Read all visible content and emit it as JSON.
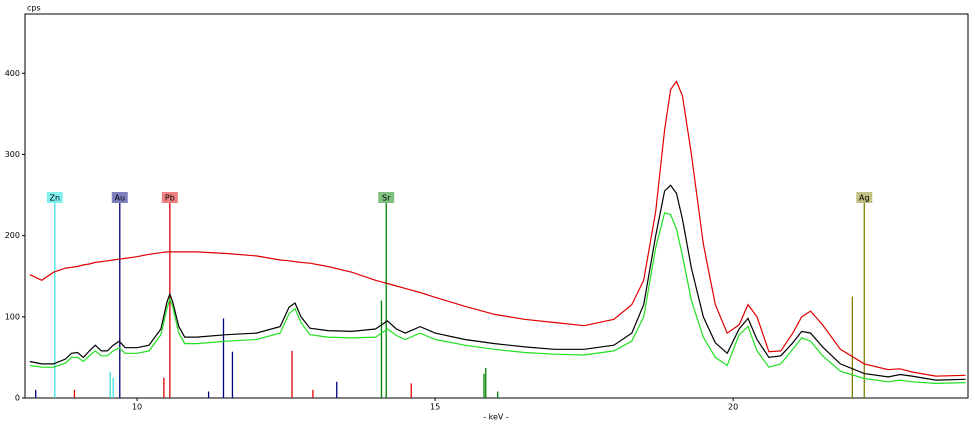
{
  "chart_data": {
    "type": "line",
    "ylabel": "cps",
    "xlabel": "- keV -",
    "xlim": [
      8.12,
      23.94
    ],
    "ylim": [
      0,
      473
    ],
    "xticks": [
      10,
      15,
      20
    ],
    "yticks": [
      0,
      100,
      200,
      300,
      400
    ],
    "x": [
      8.2,
      8.4,
      8.6,
      8.8,
      8.9,
      9.0,
      9.1,
      9.2,
      9.3,
      9.4,
      9.5,
      9.6,
      9.7,
      9.8,
      10.0,
      10.2,
      10.4,
      10.5,
      10.55,
      10.6,
      10.7,
      10.8,
      11.0,
      11.5,
      12.0,
      12.4,
      12.55,
      12.65,
      12.75,
      12.9,
      13.2,
      13.6,
      14.0,
      14.1,
      14.2,
      14.35,
      14.5,
      14.75,
      15.0,
      15.5,
      16.0,
      16.5,
      17.0,
      17.5,
      18.0,
      18.3,
      18.5,
      18.7,
      18.85,
      18.95,
      19.05,
      19.15,
      19.3,
      19.5,
      19.7,
      19.9,
      20.1,
      20.25,
      20.4,
      20.6,
      20.8,
      21.0,
      21.15,
      21.3,
      21.5,
      21.8,
      22.2,
      22.6,
      22.8,
      23.0,
      23.4,
      23.9
    ],
    "series": [
      {
        "color": "#e00000",
        "values": [
          152,
          145,
          155,
          160,
          161,
          162,
          164,
          165,
          167,
          168,
          169,
          170,
          171,
          172,
          174,
          177,
          179,
          180,
          180,
          180,
          180,
          180,
          180,
          178,
          175,
          170,
          169,
          168,
          167,
          166,
          162,
          155,
          145,
          143,
          141,
          138,
          135,
          130,
          124,
          113,
          103,
          97,
          93,
          89,
          97,
          115,
          145,
          230,
          330,
          380,
          390,
          372,
          300,
          190,
          115,
          80,
          90,
          115,
          100,
          57,
          58,
          80,
          100,
          107,
          90,
          60,
          42,
          35,
          36,
          32,
          27,
          28
        ]
      },
      {
        "color": "#000000",
        "values": [
          45,
          42,
          42,
          48,
          55,
          56,
          50,
          58,
          65,
          58,
          58,
          65,
          70,
          62,
          62,
          65,
          85,
          118,
          128,
          118,
          88,
          75,
          75,
          78,
          80,
          88,
          112,
          117,
          100,
          86,
          83,
          82,
          85,
          90,
          95,
          85,
          80,
          88,
          80,
          72,
          67,
          63,
          60,
          60,
          65,
          80,
          115,
          200,
          255,
          262,
          252,
          220,
          160,
          100,
          68,
          55,
          85,
          98,
          72,
          50,
          52,
          68,
          82,
          80,
          63,
          42,
          30,
          26,
          29,
          27,
          22,
          23
        ]
      },
      {
        "color": "#20e020",
        "values": [
          40,
          38,
          38,
          43,
          50,
          50,
          45,
          52,
          58,
          52,
          52,
          58,
          62,
          55,
          55,
          58,
          78,
          110,
          122,
          112,
          80,
          67,
          67,
          70,
          72,
          80,
          104,
          110,
          93,
          78,
          75,
          74,
          75,
          80,
          85,
          77,
          72,
          80,
          72,
          65,
          60,
          56,
          54,
          53,
          58,
          70,
          100,
          185,
          228,
          226,
          208,
          175,
          120,
          75,
          50,
          40,
          78,
          88,
          58,
          38,
          42,
          60,
          74,
          70,
          52,
          33,
          24,
          20,
          22,
          20,
          18,
          19
        ]
      }
    ],
    "markers": [
      {
        "label": "Zn",
        "x": 8.62,
        "color": "#40e0e0",
        "box": "#80f0f0"
      },
      {
        "label": "Au",
        "x": 9.71,
        "color": "#000080",
        "box": "#8080c0"
      },
      {
        "label": "Pb",
        "x": 10.55,
        "color": "#e00000",
        "box": "#f08080"
      },
      {
        "label": "Sr",
        "x": 14.18,
        "color": "#008000",
        "box": "#80c080"
      },
      {
        "label": "Ag",
        "x": 22.2,
        "color": "#808000",
        "box": "#c0c080"
      }
    ],
    "lines": [
      {
        "x": 8.3,
        "height": 10,
        "color": "#000080"
      },
      {
        "x": 8.95,
        "height": 10,
        "color": "#e00000"
      },
      {
        "x": 9.55,
        "height": 32,
        "color": "#40e0e0"
      },
      {
        "x": 9.6,
        "height": 25,
        "color": "#40e0e0"
      },
      {
        "x": 10.45,
        "height": 25,
        "color": "#e00000"
      },
      {
        "x": 11.2,
        "height": 8,
        "color": "#000080"
      },
      {
        "x": 11.45,
        "height": 98,
        "color": "#000080"
      },
      {
        "x": 11.6,
        "height": 57,
        "color": "#000080"
      },
      {
        "x": 12.6,
        "height": 58,
        "color": "#e00000"
      },
      {
        "x": 12.95,
        "height": 10,
        "color": "#e00000"
      },
      {
        "x": 13.35,
        "height": 20,
        "color": "#000080"
      },
      {
        "x": 14.1,
        "height": 120,
        "color": "#008000"
      },
      {
        "x": 14.6,
        "height": 18,
        "color": "#e00000"
      },
      {
        "x": 15.82,
        "height": 30,
        "color": "#008000"
      },
      {
        "x": 15.85,
        "height": 37,
        "color": "#008000"
      },
      {
        "x": 16.05,
        "height": 8,
        "color": "#008000"
      },
      {
        "x": 22.0,
        "height": 125,
        "color": "#808000"
      }
    ]
  }
}
